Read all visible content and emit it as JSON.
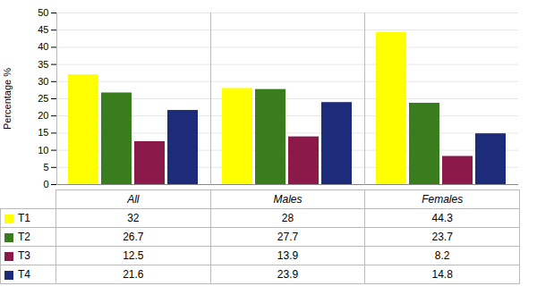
{
  "chart_data": {
    "type": "bar",
    "categories": [
      "All",
      "Males",
      "Females"
    ],
    "series": [
      {
        "name": "T1",
        "color": "#FFFF00",
        "values": [
          32,
          28,
          44.3
        ]
      },
      {
        "name": "T2",
        "color": "#3A7D1E",
        "values": [
          26.7,
          27.7,
          23.7
        ]
      },
      {
        "name": "T3",
        "color": "#8B1A4A",
        "values": [
          12.5,
          13.9,
          8.2
        ]
      },
      {
        "name": "T4",
        "color": "#1C2B7A",
        "values": [
          21.6,
          23.9,
          14.8
        ]
      }
    ],
    "ylabel": "Percentage %",
    "ylim": [
      0,
      50
    ],
    "yticks": [
      0,
      5,
      10,
      15,
      20,
      25,
      30,
      35,
      40,
      45,
      50
    ],
    "grid": true,
    "legend": "bottom"
  }
}
